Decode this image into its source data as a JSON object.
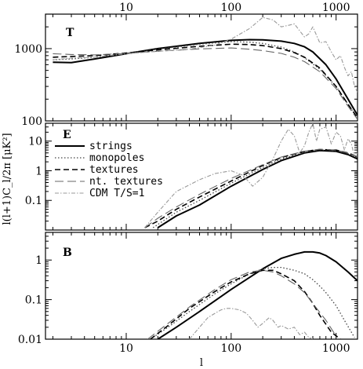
{
  "chart_data": {
    "type": "line",
    "xlabel": "l",
    "ylabel": "l(l+1)C_l/2π [μK²]",
    "xscale": "log",
    "xlim": [
      1.7,
      1600
    ],
    "x_ticks": [
      10,
      100,
      1000
    ],
    "x_tick_labels": [
      "10",
      "100",
      "1000"
    ],
    "legend": {
      "placement": "top-left of middle panel",
      "entries": [
        "strings",
        "monopoles",
        "textures",
        "nt. textures",
        "CDM T/S=1"
      ]
    },
    "styles": {
      "strings": {
        "color": "#000000",
        "dash": "",
        "width": 2.0
      },
      "monopoles": {
        "color": "#444444",
        "dash": "1.5,2.5",
        "width": 1.3
      },
      "textures": {
        "color": "#000000",
        "dash": "7,4",
        "width": 1.6
      },
      "nt. textures": {
        "color": "#666666",
        "dash": "11,5",
        "width": 1.1
      },
      "CDM T/S=1": {
        "color": "#999999",
        "dash": "5,2,1.5,2",
        "width": 1.1
      }
    },
    "panels": [
      {
        "label": "T",
        "yscale": "log",
        "ylim": [
          100,
          3000
        ],
        "y_ticks": [
          100,
          1000
        ],
        "y_tick_labels": [
          "100",
          "1000"
        ],
        "series": [
          {
            "name": "strings",
            "x": [
              2,
              3,
              5,
              10,
              20,
              50,
              100,
              150,
              200,
              300,
              400,
              500,
              600,
              800,
              1000,
              1300,
              1600
            ],
            "y": [
              650,
              640,
              720,
              850,
              1000,
              1180,
              1300,
              1330,
              1320,
              1270,
              1180,
              1060,
              900,
              600,
              380,
              200,
              120
            ]
          },
          {
            "name": "monopoles",
            "x": [
              2,
              3,
              5,
              10,
              20,
              50,
              100,
              150,
              200,
              300,
              400,
              500,
              700,
              1000,
              1300,
              1600
            ],
            "y": [
              700,
              720,
              760,
              860,
              980,
              1150,
              1250,
              1230,
              1180,
              1050,
              900,
              750,
              520,
              300,
              170,
              110
            ]
          },
          {
            "name": "textures",
            "x": [
              2,
              3,
              5,
              10,
              20,
              50,
              100,
              150,
              200,
              300,
              400,
              500,
              700,
              1000,
              1300,
              1600
            ],
            "y": [
              760,
              780,
              800,
              870,
              960,
              1080,
              1150,
              1140,
              1100,
              1000,
              880,
              760,
              540,
              300,
              170,
              110
            ]
          },
          {
            "name": "nt. textures",
            "x": [
              2,
              3,
              5,
              10,
              20,
              50,
              100,
              150,
              200,
              300,
              400,
              500,
              700,
              1000,
              1300,
              1600
            ],
            "y": [
              850,
              830,
              820,
              860,
              920,
              990,
              1020,
              980,
              940,
              860,
              760,
              660,
              480,
              280,
              160,
              105
            ]
          },
          {
            "name": "CDM T/S=1",
            "x": [
              2,
              3,
              5,
              10,
              20,
              40,
              70,
              100,
              150,
              200,
              250,
              300,
              350,
              400,
              500,
              550,
              600,
              700,
              800,
              900,
              1000,
              1100,
              1200,
              1300,
              1400,
              1500,
              1600
            ],
            "y": [
              700,
              740,
              760,
              850,
              920,
              980,
              1120,
              1350,
              1900,
              2700,
              2500,
              2000,
              2100,
              2200,
              1450,
              1600,
              2000,
              1200,
              1250,
              900,
              700,
              800,
              550,
              420,
              480,
              300,
              250
            ]
          }
        ]
      },
      {
        "label": "E",
        "yscale": "log",
        "ylim": [
          0.01,
          40
        ],
        "y_ticks": [
          0.1,
          1,
          10
        ],
        "y_tick_labels": [
          "0.1",
          "1",
          "10"
        ],
        "series": [
          {
            "name": "strings",
            "x": [
              20,
              30,
              50,
              100,
              200,
              300,
              500,
              700,
              1000,
              1300,
              1600
            ],
            "y": [
              0.012,
              0.03,
              0.07,
              0.3,
              1.1,
              2.2,
              4.0,
              4.8,
              4.5,
              3.5,
              2.5
            ]
          },
          {
            "name": "monopoles",
            "x": [
              18,
              30,
              50,
              100,
              200,
              300,
              500,
              700,
              1000,
              1300,
              1600
            ],
            "y": [
              0.012,
              0.04,
              0.1,
              0.38,
              1.3,
              2.5,
              4.2,
              5.0,
              4.8,
              3.8,
              2.8
            ]
          },
          {
            "name": "textures",
            "x": [
              15,
              20,
              30,
              50,
              100,
              200,
              300,
              500,
              700,
              1000,
              1300,
              1600
            ],
            "y": [
              0.012,
              0.02,
              0.05,
              0.13,
              0.45,
              1.5,
              2.8,
              4.5,
              5.2,
              5.0,
              4.0,
              3.0
            ]
          },
          {
            "name": "nt. textures",
            "x": [
              15,
              20,
              30,
              50,
              100,
              200,
              300,
              500,
              700,
              1000,
              1300,
              1600
            ],
            "y": [
              0.012,
              0.025,
              0.06,
              0.16,
              0.55,
              1.6,
              2.9,
              4.6,
              5.3,
              5.0,
              4.0,
              3.0
            ]
          },
          {
            "name": "CDM T/S=1",
            "x": [
              15,
              20,
              30,
              50,
              70,
              100,
              130,
              160,
              200,
              250,
              300,
              350,
              400,
              450,
              500,
              550,
              600,
              650,
              700,
              800,
              900,
              1000,
              1100,
              1200,
              1300,
              1400,
              1500,
              1600
            ],
            "y": [
              0.012,
              0.04,
              0.2,
              0.5,
              0.8,
              1.0,
              0.7,
              0.3,
              0.6,
              2.5,
              10,
              25,
              15,
              4,
              7,
              20,
              40,
              10,
              25,
              30,
              8,
              20,
              15,
              5,
              12,
              8,
              3,
              4
            ]
          }
        ]
      },
      {
        "label": "B",
        "yscale": "log",
        "ylim": [
          0.01,
          5
        ],
        "y_ticks": [
          0.01,
          0.1,
          1
        ],
        "y_tick_labels": [
          "0.01",
          "0.1",
          "1"
        ],
        "series": [
          {
            "name": "strings",
            "x": [
              20,
              30,
              50,
              100,
              200,
              300,
              400,
              500,
              600,
              700,
              800,
              1000,
              1300,
              1600
            ],
            "y": [
              0.01,
              0.02,
              0.05,
              0.18,
              0.6,
              1.1,
              1.4,
              1.6,
              1.6,
              1.5,
              1.3,
              0.9,
              0.5,
              0.3
            ]
          },
          {
            "name": "monopoles",
            "x": [
              17,
              25,
              40,
              70,
              100,
              150,
              200,
              250,
              300,
              400,
              500,
              600,
              700,
              800,
              1000,
              1200,
              1500
            ],
            "y": [
              0.01,
              0.02,
              0.05,
              0.14,
              0.25,
              0.45,
              0.6,
              0.65,
              0.65,
              0.55,
              0.45,
              0.32,
              0.22,
              0.15,
              0.07,
              0.03,
              0.011
            ]
          },
          {
            "name": "textures",
            "x": [
              17,
              25,
              40,
              70,
              100,
              150,
              200,
              250,
              300,
              400,
              500,
              600,
              700,
              900,
              1100
            ],
            "y": [
              0.01,
              0.022,
              0.06,
              0.16,
              0.28,
              0.45,
              0.55,
              0.55,
              0.45,
              0.3,
              0.16,
              0.08,
              0.04,
              0.015,
              0.01
            ]
          },
          {
            "name": "nt. textures",
            "x": [
              16,
              25,
              40,
              70,
              100,
              150,
              200,
              250,
              300,
              400,
              500,
              600,
              800,
              1000
            ],
            "y": [
              0.01,
              0.025,
              0.065,
              0.18,
              0.32,
              0.5,
              0.55,
              0.5,
              0.4,
              0.25,
              0.15,
              0.08,
              0.03,
              0.012
            ]
          },
          {
            "name": "CDM T/S=1",
            "x": [
              40,
              50,
              60,
              70,
              80,
              90,
              100,
              120,
              140,
              160,
              180,
              200,
              230,
              250,
              280,
              300,
              350,
              400,
              450,
              500,
              550,
              600
            ],
            "y": [
              0.01,
              0.02,
              0.035,
              0.045,
              0.055,
              0.06,
              0.06,
              0.055,
              0.045,
              0.03,
              0.02,
              0.025,
              0.035,
              0.03,
              0.02,
              0.022,
              0.018,
              0.02,
              0.013,
              0.015,
              0.011,
              0.01
            ]
          }
        ]
      }
    ]
  }
}
